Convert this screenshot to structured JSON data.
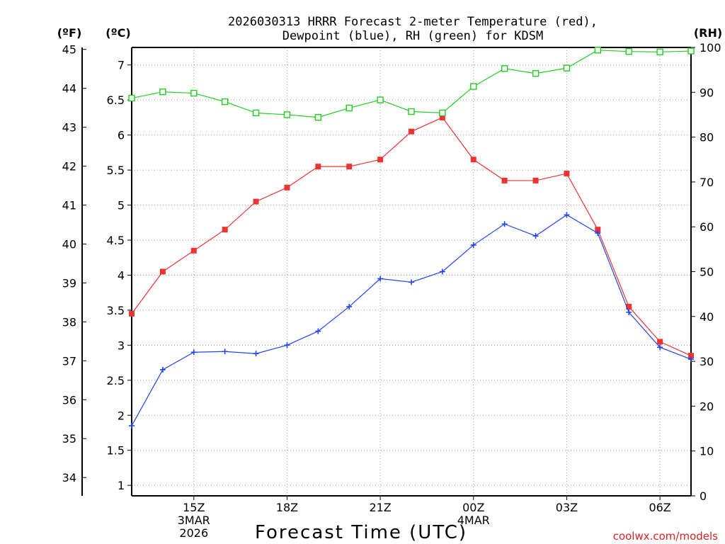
{
  "chart_data": {
    "type": "line",
    "title_line1": "2026030313 HRRR Forecast 2-meter Temperature (red),",
    "title_line2": "Dewpoint (blue), RH (green) for KDSM",
    "xlabel": "Forecast Time (UTC)",
    "credit": "coolwx.com/models",
    "unit_f": "(ºF)",
    "unit_c": "(ºC)",
    "unit_rh": "(RH)",
    "x_hours": [
      13,
      14,
      15,
      16,
      17,
      18,
      19,
      20,
      21,
      22,
      23,
      24,
      25,
      26,
      27,
      28,
      29,
      30,
      31
    ],
    "xlim": [
      13,
      31
    ],
    "x_ticks": [
      {
        "hour": 15,
        "line1": "15Z",
        "line2": "3MAR",
        "line3": "2026"
      },
      {
        "hour": 18,
        "line1": "18Z",
        "line2": "",
        "line3": ""
      },
      {
        "hour": 21,
        "line1": "21Z",
        "line2": "",
        "line3": ""
      },
      {
        "hour": 24,
        "line1": "00Z",
        "line2": "4MAR",
        "line3": ""
      },
      {
        "hour": 27,
        "line1": "03Z",
        "line2": "",
        "line3": ""
      },
      {
        "hour": 30,
        "line1": "06Z",
        "line2": "",
        "line3": ""
      }
    ],
    "ylim_c": [
      0.85,
      7.25
    ],
    "y_ticks_c": [
      "1",
      "1.5",
      "2",
      "2.5",
      "3",
      "3.5",
      "4",
      "4.5",
      "5",
      "5.5",
      "6",
      "6.5",
      "7"
    ],
    "y_ticks_f": [
      "34",
      "35",
      "36",
      "37",
      "38",
      "39",
      "40",
      "41",
      "42",
      "43",
      "44",
      "45"
    ],
    "ylim_rh": [
      0,
      100
    ],
    "y_ticks_rh": [
      "0",
      "10",
      "20",
      "30",
      "40",
      "50",
      "60",
      "70",
      "80",
      "90",
      "100"
    ],
    "series": [
      {
        "name": "2-meter Temperature",
        "unit": "C",
        "color": "#ee3333",
        "marker": "filled-square",
        "values": [
          3.45,
          4.05,
          4.35,
          4.65,
          5.05,
          5.25,
          5.55,
          5.55,
          5.65,
          6.05,
          6.25,
          5.65,
          5.35,
          5.35,
          5.45,
          4.65,
          3.55,
          3.05,
          2.85
        ]
      },
      {
        "name": "Dewpoint",
        "unit": "C",
        "color": "#2244ee",
        "marker": "plus",
        "values": [
          1.85,
          2.65,
          2.9,
          2.91,
          2.88,
          3.0,
          3.2,
          3.55,
          3.95,
          3.9,
          4.05,
          4.43,
          4.73,
          4.56,
          4.86,
          4.6,
          3.47,
          2.97,
          2.8
        ]
      },
      {
        "name": "RH",
        "unit": "%",
        "color": "#22cc22",
        "marker": "open-square",
        "values": [
          88.7,
          90.1,
          89.8,
          87.9,
          85.4,
          85.0,
          84.4,
          86.5,
          88.3,
          85.7,
          85.4,
          91.3,
          95.3,
          94.2,
          95.4,
          99.4,
          99.1,
          99.0,
          99.2
        ]
      }
    ]
  }
}
